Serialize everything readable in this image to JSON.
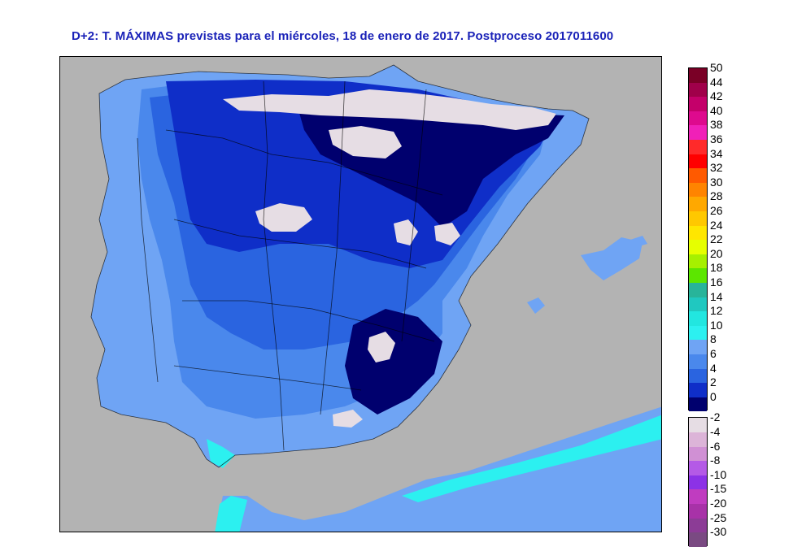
{
  "title": "D+2: T. MÁXIMAS previstas para el miércoles, 18 de enero de 2017. Postproceso 2017011600",
  "legend": {
    "positive": [
      {
        "label": "50",
        "color": "#7a0026"
      },
      {
        "label": "44",
        "color": "#a0004a"
      },
      {
        "label": "42",
        "color": "#c4006a"
      },
      {
        "label": "40",
        "color": "#de0a8e"
      },
      {
        "label": "38",
        "color": "#f020b8"
      },
      {
        "label": "36",
        "color": "#ff2a2a"
      },
      {
        "label": "34",
        "color": "#ff0000"
      },
      {
        "label": "32",
        "color": "#ff5a00"
      },
      {
        "label": "30",
        "color": "#ff8400"
      },
      {
        "label": "28",
        "color": "#ffa800"
      },
      {
        "label": "26",
        "color": "#ffc800"
      },
      {
        "label": "24",
        "color": "#ffe600"
      },
      {
        "label": "22",
        "color": "#e6ff00"
      },
      {
        "label": "20",
        "color": "#a6f000"
      },
      {
        "label": "18",
        "color": "#5ce600"
      },
      {
        "label": "16",
        "color": "#28b49a"
      },
      {
        "label": "14",
        "color": "#20c8c0"
      },
      {
        "label": "12",
        "color": "#22e6e0"
      },
      {
        "label": "10",
        "color": "#2cf0f0"
      },
      {
        "label": "8",
        "color": "#6fa4f4"
      },
      {
        "label": "6",
        "color": "#4a88ec"
      },
      {
        "label": "4",
        "color": "#2a64e0"
      },
      {
        "label": "2",
        "color": "#0f2ec8"
      },
      {
        "label": "0",
        "color": "#00006e"
      }
    ],
    "negative": [
      {
        "label": "-2",
        "color": "#e6dde4"
      },
      {
        "label": "-4",
        "color": "#dcb4d8"
      },
      {
        "label": "-6",
        "color": "#d090d4"
      },
      {
        "label": "-8",
        "color": "#b45ae6"
      },
      {
        "label": "-10",
        "color": "#8c32e6"
      },
      {
        "label": "-15",
        "color": "#c03cc0"
      },
      {
        "label": "-20",
        "color": "#a832a8"
      },
      {
        "label": "-25",
        "color": "#8c3c96"
      },
      {
        "label": "-30",
        "color": "#7a4a82"
      }
    ]
  },
  "map_colors": {
    "sea": "#b3b3b3",
    "t8_10": "#6fa4f4",
    "t6_8": "#4a88ec",
    "t4_6": "#2a64e0",
    "t2_4": "#0f2ec8",
    "t0_2": "#00006e",
    "t10_12": "#2cf0f0",
    "snow": "#e6dde4",
    "borders": "#000000"
  }
}
